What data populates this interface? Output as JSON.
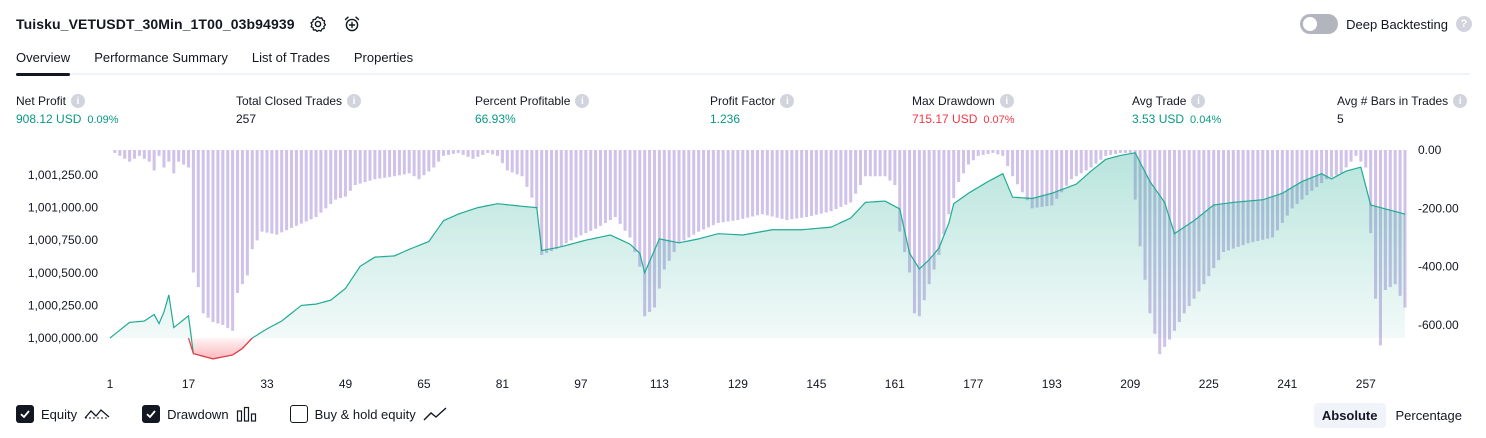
{
  "header": {
    "title": "Tuisku_VETUSDT_30Min_1T00_03b94939",
    "settings_icon": "gear-icon",
    "alert_icon": "alarm-add-icon"
  },
  "deep_backtesting": {
    "label": "Deep Backtesting",
    "enabled": false,
    "help": "?"
  },
  "tabs": [
    {
      "label": "Overview",
      "active": true
    },
    {
      "label": "Performance Summary",
      "active": false
    },
    {
      "label": "List of Trades",
      "active": false
    },
    {
      "label": "Properties",
      "active": false
    }
  ],
  "metrics": [
    {
      "label": "Net Profit",
      "value": "908.12 USD",
      "sub": "0.09%",
      "tone": "pos"
    },
    {
      "label": "Total Closed Trades",
      "value": "257",
      "sub": "",
      "tone": "neu"
    },
    {
      "label": "Percent Profitable",
      "value": "66.93%",
      "sub": "",
      "tone": "pos"
    },
    {
      "label": "Profit Factor",
      "value": "1.236",
      "sub": "",
      "tone": "pos"
    },
    {
      "label": "Max Drawdown",
      "value": "715.17 USD",
      "sub": "0.07%",
      "tone": "neg"
    },
    {
      "label": "Avg Trade",
      "value": "3.53 USD",
      "sub": "0.04%",
      "tone": "pos"
    },
    {
      "label": "Avg # Bars in Trades",
      "value": "5",
      "sub": "",
      "tone": "neu"
    }
  ],
  "chart_data": {
    "type": "area",
    "x_ticks": [
      "1",
      "17",
      "33",
      "49",
      "65",
      "81",
      "97",
      "113",
      "129",
      "145",
      "161",
      "177",
      "193",
      "209",
      "225",
      "241",
      "257"
    ],
    "left_axis_ticks": [
      "1,001,250.00",
      "1,001,000.00",
      "1,000,750.00",
      "1,000,500.00",
      "1,000,250.00",
      "1,000,000.00"
    ],
    "right_axis_ticks": [
      "0.00",
      "-200.00",
      "-400.00",
      "-600.00"
    ],
    "left_ylim": [
      999850,
      1001475
    ],
    "right_ylim": [
      -715,
      0
    ],
    "colors": {
      "equity_line": "#22ab94",
      "equity_fill": "#22ab94",
      "loss_line": "#f23645",
      "drawdown_bar": "#b39ddb"
    },
    "equity_keypoints": [
      [
        1,
        1000000
      ],
      [
        5,
        1000120
      ],
      [
        8,
        1000130
      ],
      [
        10,
        1000180
      ],
      [
        11,
        1000110
      ],
      [
        12,
        1000200
      ],
      [
        13,
        1000330
      ],
      [
        14,
        1000080
      ],
      [
        16,
        1000140
      ],
      [
        17,
        1000170
      ],
      [
        18,
        999880
      ],
      [
        22,
        999840
      ],
      [
        26,
        999870
      ],
      [
        28,
        999920
      ],
      [
        30,
        1000000
      ],
      [
        33,
        1000070
      ],
      [
        36,
        1000130
      ],
      [
        40,
        1000250
      ],
      [
        43,
        1000260
      ],
      [
        46,
        1000290
      ],
      [
        49,
        1000380
      ],
      [
        52,
        1000550
      ],
      [
        55,
        1000620
      ],
      [
        59,
        1000630
      ],
      [
        62,
        1000680
      ],
      [
        66,
        1000740
      ],
      [
        69,
        1000900
      ],
      [
        72,
        1000950
      ],
      [
        76,
        1001000
      ],
      [
        80,
        1001030
      ],
      [
        85,
        1001010
      ],
      [
        88,
        1001000
      ],
      [
        89,
        1000670
      ],
      [
        93,
        1000700
      ],
      [
        98,
        1000750
      ],
      [
        103,
        1000790
      ],
      [
        107,
        1000720
      ],
      [
        109,
        1000650
      ],
      [
        110,
        1000500
      ],
      [
        113,
        1000760
      ],
      [
        117,
        1000730
      ],
      [
        121,
        1000760
      ],
      [
        125,
        1000800
      ],
      [
        130,
        1000790
      ],
      [
        136,
        1000830
      ],
      [
        142,
        1000830
      ],
      [
        148,
        1000850
      ],
      [
        152,
        1000920
      ],
      [
        155,
        1001040
      ],
      [
        159,
        1001050
      ],
      [
        162,
        1000990
      ],
      [
        164,
        1000650
      ],
      [
        166,
        1000530
      ],
      [
        168,
        1000600
      ],
      [
        170,
        1000690
      ],
      [
        172,
        1000880
      ],
      [
        173,
        1001030
      ],
      [
        176,
        1001110
      ],
      [
        180,
        1001200
      ],
      [
        183,
        1001260
      ],
      [
        185,
        1001080
      ],
      [
        189,
        1001070
      ],
      [
        193,
        1001110
      ],
      [
        198,
        1001180
      ],
      [
        201,
        1001280
      ],
      [
        204,
        1001370
      ],
      [
        207,
        1001400
      ],
      [
        210,
        1001420
      ],
      [
        213,
        1001200
      ],
      [
        216,
        1001040
      ],
      [
        218,
        1000800
      ],
      [
        222,
        1000900
      ],
      [
        226,
        1001020
      ],
      [
        230,
        1001040
      ],
      [
        236,
        1001060
      ],
      [
        240,
        1001110
      ],
      [
        244,
        1001200
      ],
      [
        248,
        1001260
      ],
      [
        250,
        1001220
      ],
      [
        253,
        1001280
      ],
      [
        256,
        1001310
      ],
      [
        258,
        1001020
      ],
      [
        262,
        1000980
      ],
      [
        265,
        1000950
      ]
    ],
    "drawdown_keypoints": [
      [
        1,
        0
      ],
      [
        3,
        -20
      ],
      [
        5,
        -40
      ],
      [
        7,
        -20
      ],
      [
        9,
        -40
      ],
      [
        10,
        -70
      ],
      [
        11,
        -20
      ],
      [
        12,
        -60
      ],
      [
        13,
        -40
      ],
      [
        14,
        -80
      ],
      [
        15,
        -40
      ],
      [
        17,
        -60
      ],
      [
        18,
        -420
      ],
      [
        19,
        -470
      ],
      [
        20,
        -560
      ],
      [
        22,
        -590
      ],
      [
        24,
        -600
      ],
      [
        26,
        -620
      ],
      [
        27,
        -490
      ],
      [
        29,
        -430
      ],
      [
        30,
        -340
      ],
      [
        32,
        -280
      ],
      [
        35,
        -290
      ],
      [
        39,
        -260
      ],
      [
        43,
        -230
      ],
      [
        47,
        -170
      ],
      [
        49,
        -160
      ],
      [
        51,
        -120
      ],
      [
        55,
        -100
      ],
      [
        59,
        -90
      ],
      [
        62,
        -80
      ],
      [
        64,
        -100
      ],
      [
        67,
        -60
      ],
      [
        69,
        -20
      ],
      [
        72,
        -10
      ],
      [
        75,
        -30
      ],
      [
        78,
        -10
      ],
      [
        80,
        -20
      ],
      [
        82,
        -70
      ],
      [
        85,
        -90
      ],
      [
        88,
        -200
      ],
      [
        89,
        -360
      ],
      [
        92,
        -340
      ],
      [
        96,
        -300
      ],
      [
        100,
        -270
      ],
      [
        104,
        -230
      ],
      [
        107,
        -300
      ],
      [
        109,
        -400
      ],
      [
        110,
        -570
      ],
      [
        112,
        -540
      ],
      [
        114,
        -410
      ],
      [
        117,
        -320
      ],
      [
        121,
        -280
      ],
      [
        125,
        -250
      ],
      [
        129,
        -240
      ],
      [
        134,
        -220
      ],
      [
        139,
        -240
      ],
      [
        143,
        -230
      ],
      [
        148,
        -210
      ],
      [
        152,
        -180
      ],
      [
        155,
        -90
      ],
      [
        159,
        -90
      ],
      [
        161,
        -120
      ],
      [
        162,
        -280
      ],
      [
        164,
        -420
      ],
      [
        165,
        -560
      ],
      [
        166,
        -570
      ],
      [
        168,
        -460
      ],
      [
        170,
        -360
      ],
      [
        172,
        -220
      ],
      [
        174,
        -110
      ],
      [
        176,
        -50
      ],
      [
        178,
        -20
      ],
      [
        181,
        -10
      ],
      [
        183,
        -20
      ],
      [
        185,
        -90
      ],
      [
        189,
        -200
      ],
      [
        193,
        -190
      ],
      [
        197,
        -100
      ],
      [
        201,
        -60
      ],
      [
        204,
        -20
      ],
      [
        207,
        -10
      ],
      [
        209,
        -10
      ],
      [
        211,
        -330
      ],
      [
        213,
        -560
      ],
      [
        215,
        -700
      ],
      [
        217,
        -650
      ],
      [
        220,
        -560
      ],
      [
        224,
        -460
      ],
      [
        228,
        -350
      ],
      [
        233,
        -320
      ],
      [
        238,
        -300
      ],
      [
        242,
        -200
      ],
      [
        246,
        -140
      ],
      [
        249,
        -100
      ],
      [
        252,
        -80
      ],
      [
        255,
        -20
      ],
      [
        257,
        -60
      ],
      [
        259,
        -510
      ],
      [
        260,
        -670
      ],
      [
        261,
        -480
      ],
      [
        263,
        -460
      ],
      [
        265,
        -540
      ]
    ]
  },
  "legend": [
    {
      "label": "Equity",
      "checked": true,
      "icon": "equity-line-icon"
    },
    {
      "label": "Drawdown",
      "checked": true,
      "icon": "drawdown-bars-icon"
    },
    {
      "label": "Buy & hold equity",
      "checked": false,
      "icon": "buy-hold-line-icon"
    }
  ],
  "mode": {
    "absolute": "Absolute",
    "percentage": "Percentage",
    "selected": "absolute"
  }
}
